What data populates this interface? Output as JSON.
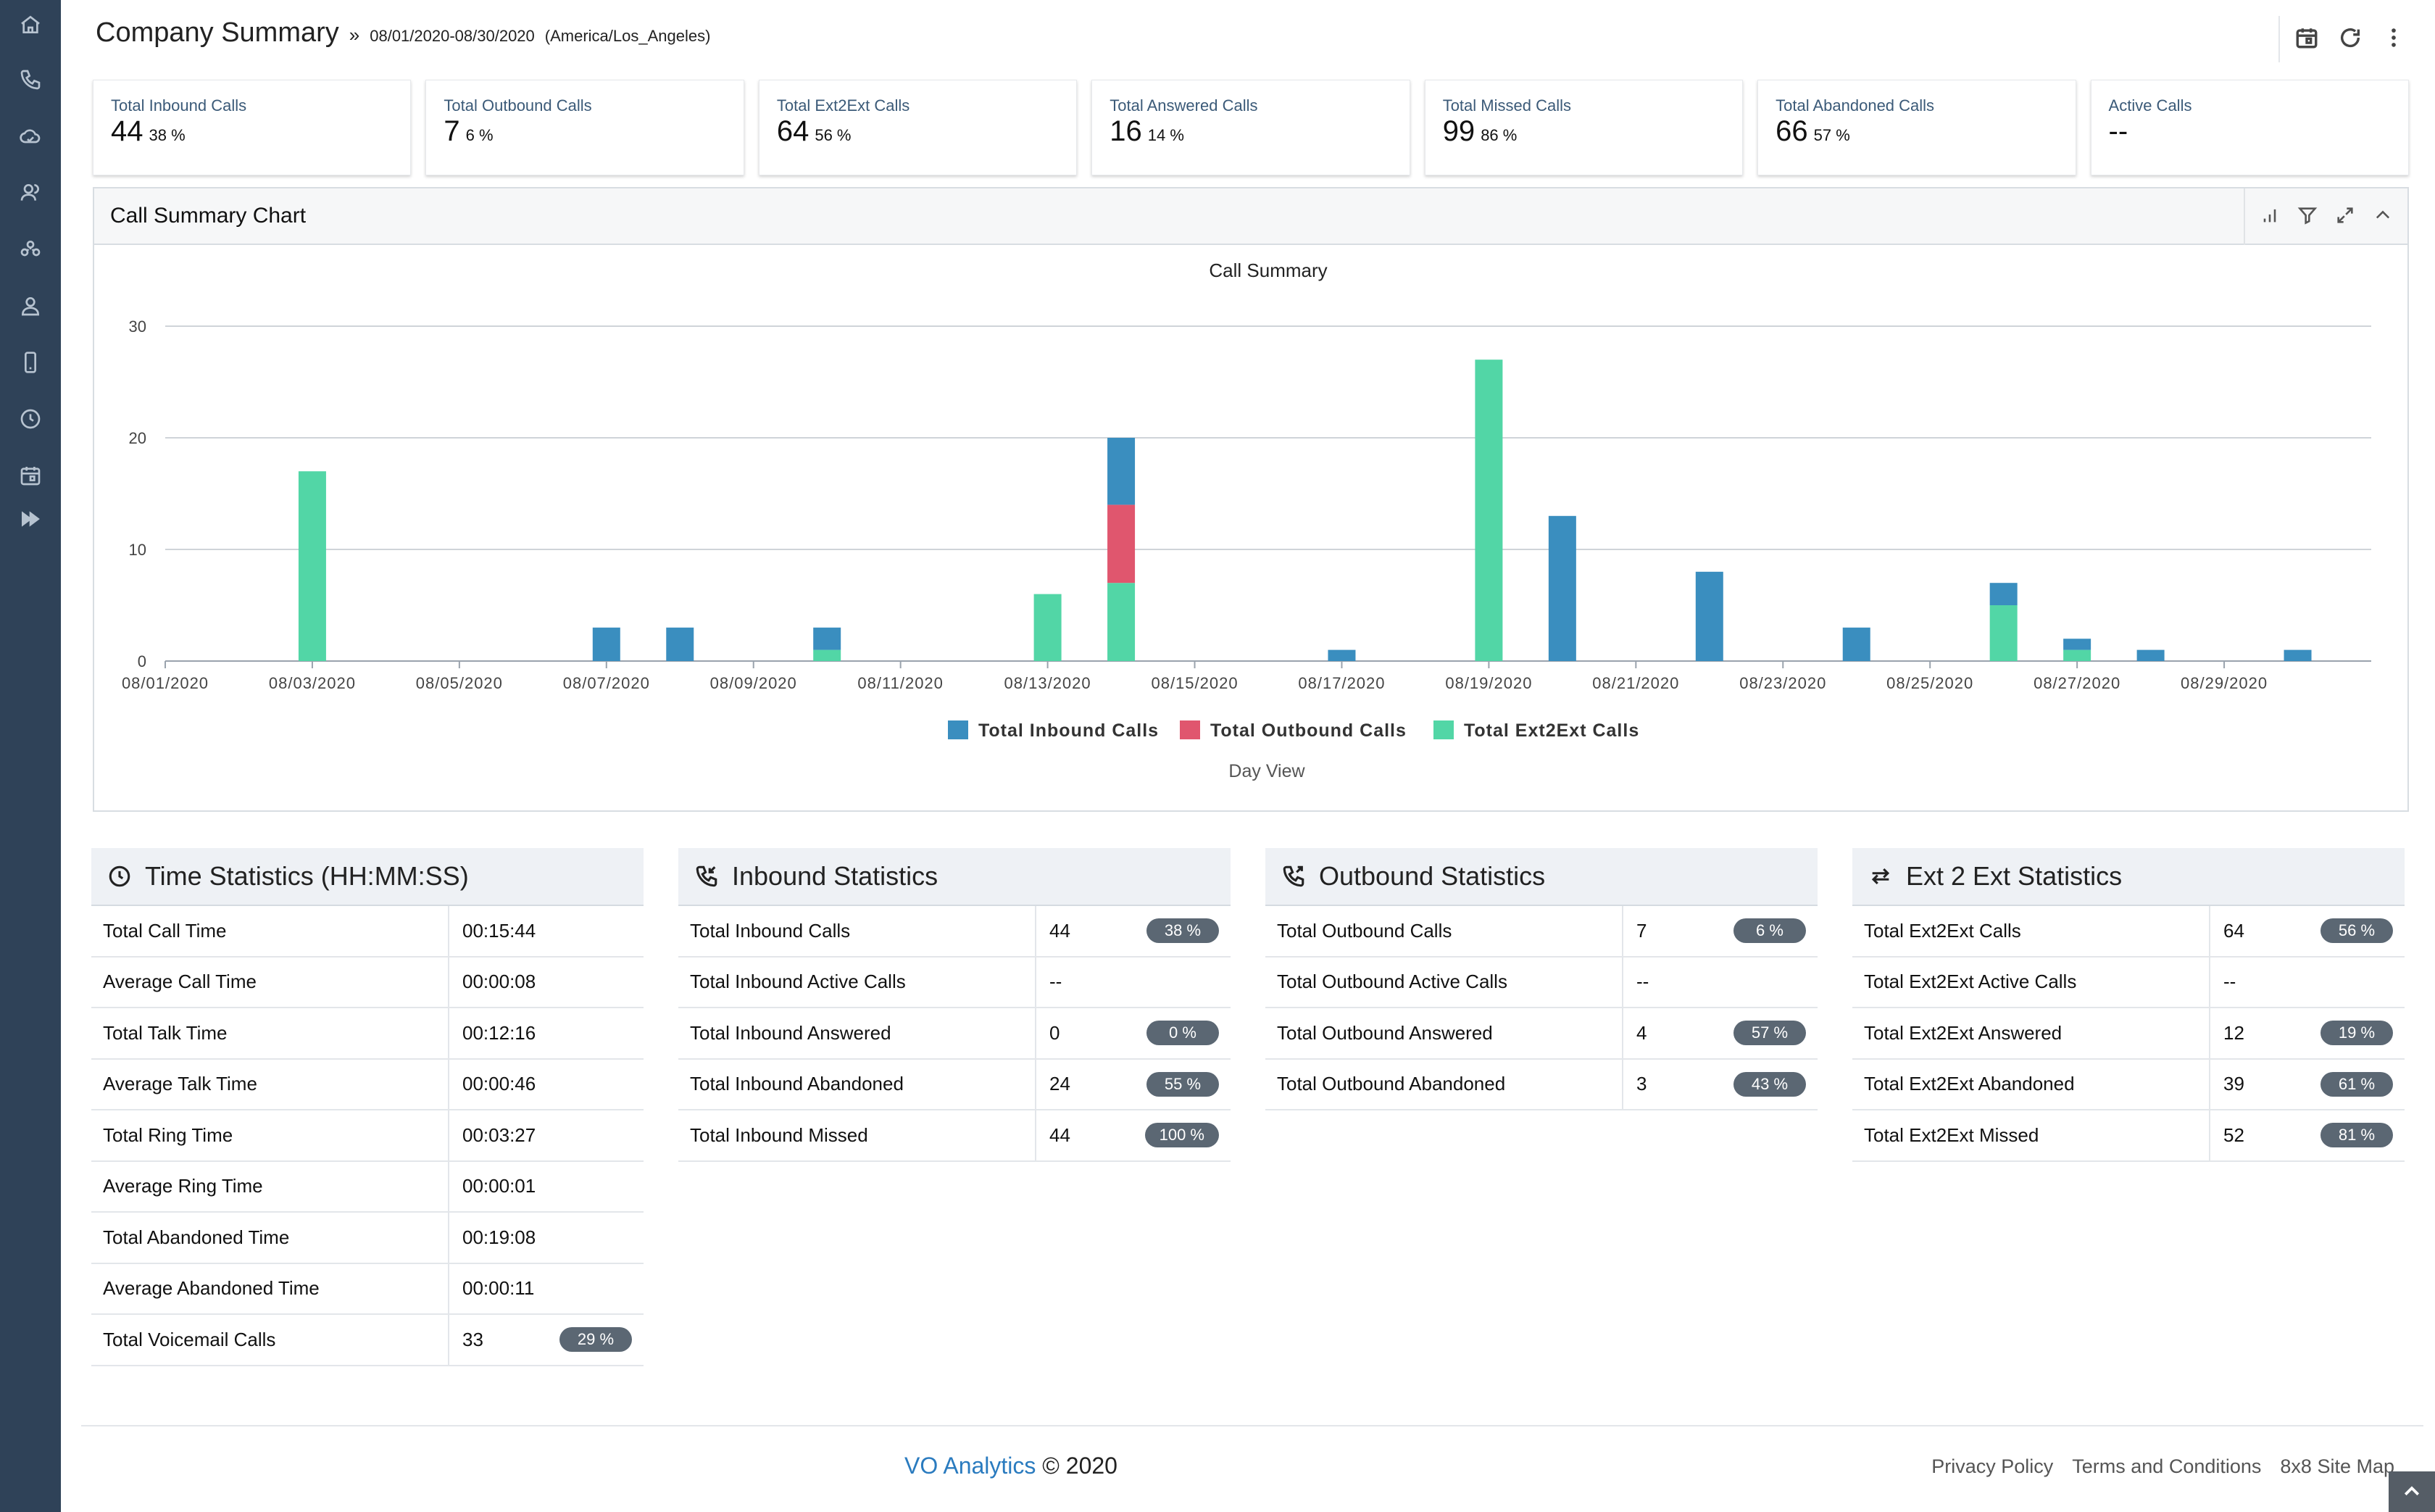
{
  "header": {
    "title": "Company Summary",
    "separator": "»",
    "date_range": "08/01/2020-08/30/2020",
    "timezone": "(America/Los_Angeles)"
  },
  "kpis": [
    {
      "label": "Total Inbound Calls",
      "value": "44",
      "pct": "38 %"
    },
    {
      "label": "Total Outbound Calls",
      "value": "7",
      "pct": "6 %"
    },
    {
      "label": "Total Ext2Ext Calls",
      "value": "64",
      "pct": "56 %"
    },
    {
      "label": "Total Answered Calls",
      "value": "16",
      "pct": "14 %"
    },
    {
      "label": "Total Missed Calls",
      "value": "99",
      "pct": "86 %"
    },
    {
      "label": "Total Abandoned Calls",
      "value": "66",
      "pct": "57 %"
    },
    {
      "label": "Active Calls",
      "value": "--",
      "pct": ""
    }
  ],
  "chart_panel": {
    "title": "Call Summary Chart"
  },
  "chart_data": {
    "type": "bar",
    "stacked": true,
    "title": "Call Summary",
    "xlabel": "Day View",
    "ylim": [
      0,
      30
    ],
    "yticks": [
      0,
      10,
      20,
      30
    ],
    "grid": true,
    "legend": "bottom",
    "categories": [
      "08/01/2020",
      "08/02/2020",
      "08/03/2020",
      "08/04/2020",
      "08/05/2020",
      "08/06/2020",
      "08/07/2020",
      "08/08/2020",
      "08/09/2020",
      "08/10/2020",
      "08/11/2020",
      "08/12/2020",
      "08/13/2020",
      "08/14/2020",
      "08/15/2020",
      "08/16/2020",
      "08/17/2020",
      "08/18/2020",
      "08/19/2020",
      "08/20/2020",
      "08/21/2020",
      "08/22/2020",
      "08/23/2020",
      "08/24/2020",
      "08/25/2020",
      "08/26/2020",
      "08/27/2020",
      "08/28/2020",
      "08/29/2020",
      "08/30/2020"
    ],
    "tick_labels": [
      "08/01/2020",
      "08/03/2020",
      "08/05/2020",
      "08/07/2020",
      "08/09/2020",
      "08/11/2020",
      "08/13/2020",
      "08/15/2020",
      "08/17/2020",
      "08/19/2020",
      "08/21/2020",
      "08/23/2020",
      "08/25/2020",
      "08/27/2020",
      "08/29/2020"
    ],
    "series": [
      {
        "name": "Total Inbound Calls",
        "color": "#3a8ebf",
        "values": [
          0,
          0,
          0,
          0,
          0,
          0,
          3,
          3,
          0,
          2,
          0,
          0,
          0,
          6,
          0,
          0,
          1,
          0,
          0,
          13,
          0,
          8,
          0,
          3,
          0,
          2,
          1,
          1,
          0,
          1
        ]
      },
      {
        "name": "Total Outbound Calls",
        "color": "#e0566e",
        "values": [
          0,
          0,
          0,
          0,
          0,
          0,
          0,
          0,
          0,
          0,
          0,
          0,
          0,
          7,
          0,
          0,
          0,
          0,
          0,
          0,
          0,
          0,
          0,
          0,
          0,
          0,
          0,
          0,
          0,
          0
        ]
      },
      {
        "name": "Total Ext2Ext Calls",
        "color": "#52d6a6",
        "values": [
          0,
          0,
          17,
          0,
          0,
          0,
          0,
          0,
          0,
          1,
          0,
          0,
          6,
          7,
          0,
          0,
          0,
          0,
          27,
          0,
          0,
          0,
          0,
          0,
          0,
          5,
          1,
          0,
          0,
          0
        ]
      }
    ]
  },
  "time_stats": {
    "title": "Time Statistics (HH:MM:SS)",
    "rows": [
      {
        "label": "Total Call Time",
        "value": "00:15:44",
        "pct": ""
      },
      {
        "label": "Average Call Time",
        "value": "00:00:08",
        "pct": ""
      },
      {
        "label": "Total Talk Time",
        "value": "00:12:16",
        "pct": ""
      },
      {
        "label": "Average Talk Time",
        "value": "00:00:46",
        "pct": ""
      },
      {
        "label": "Total Ring Time",
        "value": "00:03:27",
        "pct": ""
      },
      {
        "label": "Average Ring Time",
        "value": "00:00:01",
        "pct": ""
      },
      {
        "label": "Total Abandoned Time",
        "value": "00:19:08",
        "pct": ""
      },
      {
        "label": "Average Abandoned Time",
        "value": "00:00:11",
        "pct": ""
      },
      {
        "label": "Total Voicemail Calls",
        "value": "33",
        "pct": "29 %"
      }
    ]
  },
  "inbound_stats": {
    "title": "Inbound Statistics",
    "rows": [
      {
        "label": "Total Inbound Calls",
        "value": "44",
        "pct": "38 %"
      },
      {
        "label": "Total Inbound Active Calls",
        "value": "--",
        "pct": ""
      },
      {
        "label": "Total Inbound Answered",
        "value": "0",
        "pct": "0 %"
      },
      {
        "label": "Total Inbound Abandoned",
        "value": "24",
        "pct": "55 %"
      },
      {
        "label": "Total Inbound Missed",
        "value": "44",
        "pct": "100 %"
      }
    ]
  },
  "outbound_stats": {
    "title": "Outbound Statistics",
    "rows": [
      {
        "label": "Total Outbound Calls",
        "value": "7",
        "pct": "6 %"
      },
      {
        "label": "Total Outbound Active Calls",
        "value": "--",
        "pct": ""
      },
      {
        "label": "Total Outbound Answered",
        "value": "4",
        "pct": "57 %"
      },
      {
        "label": "Total Outbound Abandoned",
        "value": "3",
        "pct": "43 %"
      }
    ]
  },
  "ext_stats": {
    "title": "Ext 2 Ext Statistics",
    "rows": [
      {
        "label": "Total Ext2Ext Calls",
        "value": "64",
        "pct": "56 %"
      },
      {
        "label": "Total Ext2Ext Active Calls",
        "value": "--",
        "pct": ""
      },
      {
        "label": "Total Ext2Ext Answered",
        "value": "12",
        "pct": "19 %"
      },
      {
        "label": "Total Ext2Ext Abandoned",
        "value": "39",
        "pct": "61 %"
      },
      {
        "label": "Total Ext2Ext Missed",
        "value": "52",
        "pct": "81 %"
      }
    ]
  },
  "footer": {
    "brand": "VO Analytics",
    "copyright": "© 2020",
    "links": [
      "Privacy Policy",
      "Terms and Conditions",
      "8x8 Site Map"
    ]
  },
  "icons": {
    "sidebar": [
      "home-icon",
      "phone-icon",
      "cloud-icon",
      "agents-icon",
      "group-icon",
      "user-icon",
      "mobile-icon",
      "clock-icon",
      "calendar-icon",
      "expand-icon"
    ],
    "header_tools": [
      "calendar-icon",
      "refresh-icon",
      "more-vertical-icon"
    ],
    "chart_tools": [
      "chart-type-icon",
      "filter-icon",
      "fullscreen-icon",
      "collapse-icon"
    ]
  }
}
